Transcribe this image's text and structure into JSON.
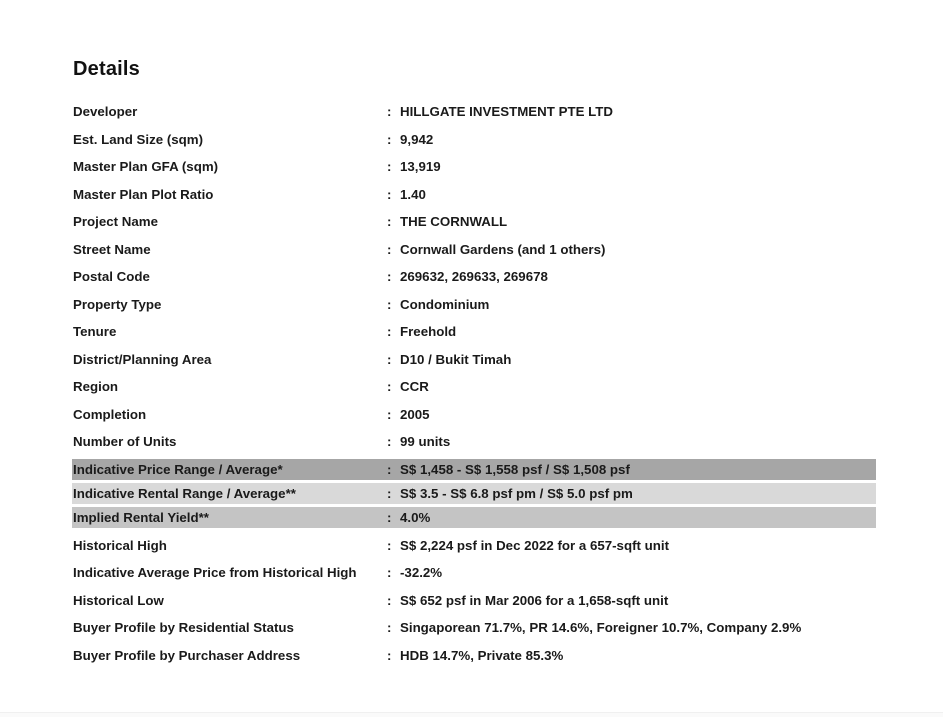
{
  "page": {
    "title": "Details"
  },
  "colors": {
    "background": "#ffffff",
    "text": "#1a1a1a",
    "row_highlight_dark": "#a6a6a6",
    "row_highlight_light": "#d9d9d9",
    "row_highlight_medium": "#c4c4c4"
  },
  "details": {
    "separator": ":",
    "rows": [
      {
        "label": "Developer",
        "value": "HILLGATE INVESTMENT PTE LTD",
        "highlight": null
      },
      {
        "label": "Est. Land Size (sqm)",
        "value": "9,942",
        "highlight": null
      },
      {
        "label": "Master Plan GFA (sqm)",
        "value": "13,919",
        "highlight": null
      },
      {
        "label": "Master Plan Plot Ratio",
        "value": "1.40",
        "highlight": null
      },
      {
        "label": "Project Name",
        "value": "THE CORNWALL",
        "highlight": null
      },
      {
        "label": "Street Name",
        "value": "Cornwall Gardens (and 1 others)",
        "highlight": null
      },
      {
        "label": "Postal Code",
        "value": "269632, 269633, 269678",
        "highlight": null
      },
      {
        "label": "Property Type",
        "value": "Condominium",
        "highlight": null
      },
      {
        "label": "Tenure",
        "value": "Freehold",
        "highlight": null
      },
      {
        "label": "District/Planning Area",
        "value": "D10 / Bukit Timah",
        "highlight": null
      },
      {
        "label": "Region",
        "value": "CCR",
        "highlight": null
      },
      {
        "label": "Completion",
        "value": "2005",
        "highlight": null
      },
      {
        "label": "Number of Units",
        "value": "99 units",
        "highlight": null
      },
      {
        "label": "Indicative Price Range / Average*",
        "value": "S$ 1,458 - S$ 1,558 psf / S$ 1,508 psf",
        "highlight": "dark"
      },
      {
        "label": "Indicative Rental Range / Average**",
        "value": "S$ 3.5 - S$ 6.8 psf pm / S$ 5.0 psf pm",
        "highlight": "light"
      },
      {
        "label": "Implied Rental Yield**",
        "value": "4.0%",
        "highlight": "medium"
      },
      {
        "label": "Historical High",
        "value": "S$ 2,224 psf in Dec 2022 for a 657-sqft unit",
        "highlight": null
      },
      {
        "label": "Indicative Average Price from Historical High",
        "value": "-32.2%",
        "highlight": null
      },
      {
        "label": "Historical Low",
        "value": "S$ 652 psf in Mar 2006 for a 1,658-sqft unit",
        "highlight": null
      },
      {
        "label": "Buyer Profile by Residential Status",
        "value": "Singaporean 71.7%, PR 14.6%, Foreigner 10.7%, Company 2.9%",
        "highlight": null
      },
      {
        "label": "Buyer Profile by Purchaser Address",
        "value": "HDB 14.7%, Private 85.3%",
        "highlight": null
      }
    ]
  }
}
